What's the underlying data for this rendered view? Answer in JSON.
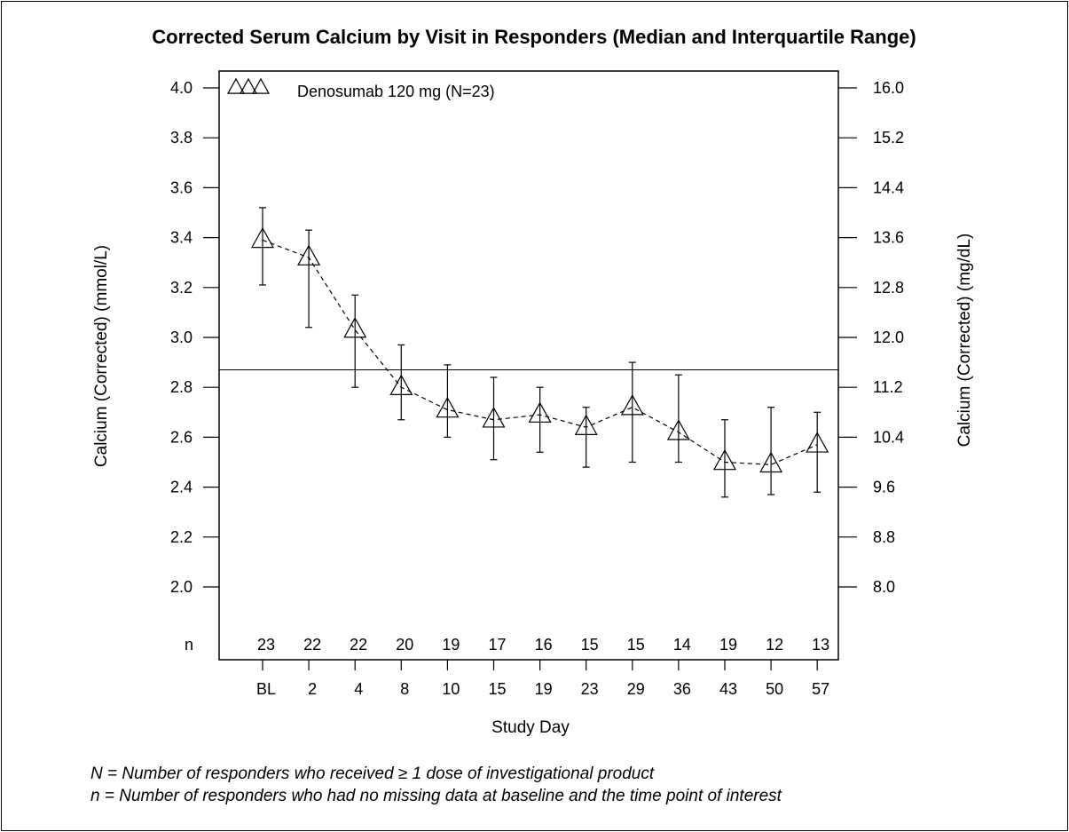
{
  "chart_data": {
    "type": "line",
    "title": "Corrected Serum Calcium by Visit in Responders (Median and Interquartile Range)",
    "xlabel": "Study Day",
    "ylabel": "Calcium (Corrected) (mmol/L)",
    "ylabel_right": "Calcium (Corrected) (mg/dL)",
    "ylim": [
      1.7,
      4.0
    ],
    "yticks": [
      "2.0",
      "2.2",
      "2.4",
      "2.6",
      "2.8",
      "3.0",
      "3.2",
      "3.4",
      "3.6",
      "3.8",
      "4.0"
    ],
    "yticks_right": [
      "8.0",
      "8.8",
      "9.6",
      "10.4",
      "11.2",
      "12.0",
      "12.8",
      "13.6",
      "14.4",
      "15.2",
      "16.0"
    ],
    "categories": [
      "BL",
      "2",
      "4",
      "8",
      "10",
      "15",
      "19",
      "23",
      "29",
      "36",
      "43",
      "50",
      "57"
    ],
    "n_label": "n",
    "n_values": [
      "23",
      "22",
      "22",
      "20",
      "19",
      "17",
      "16",
      "15",
      "15",
      "14",
      "19",
      "12",
      "13"
    ],
    "reference_line": 2.87,
    "legend": {
      "label": "Denosumab 120 mg (N=23)",
      "placement": "top-left"
    },
    "series": [
      {
        "name": "Denosumab 120 mg (N=23)",
        "median": [
          3.39,
          3.32,
          3.03,
          2.8,
          2.71,
          2.67,
          2.69,
          2.64,
          2.72,
          2.62,
          2.5,
          2.49,
          2.57
        ],
        "q1": [
          3.21,
          3.04,
          2.8,
          2.67,
          2.6,
          2.51,
          2.54,
          2.48,
          2.5,
          2.5,
          2.36,
          2.37,
          2.38
        ],
        "q3": [
          3.52,
          3.43,
          3.17,
          2.97,
          2.89,
          2.84,
          2.8,
          2.72,
          2.9,
          2.85,
          2.67,
          2.72,
          2.7
        ]
      }
    ]
  },
  "footnotes": [
    "N = Number of responders who received ≥ 1 dose of investigational product",
    "n = Number of responders who had no missing data at baseline and the time point of interest"
  ]
}
